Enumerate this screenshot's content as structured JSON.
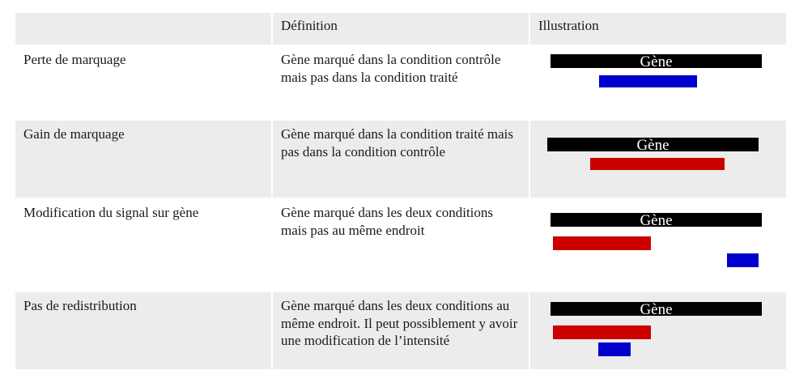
{
  "table": {
    "headers": [
      "",
      "Définition",
      "Illustration"
    ],
    "rows": [
      {
        "label": "Perte de marquage",
        "definition": "Gène marqué dans la condition contrôle mais pas dans la condition traité",
        "gene_label": "Gène",
        "bars": [
          "blue"
        ]
      },
      {
        "label": "Gain de marquage",
        "definition": "Gène marqué dans la condition traité mais pas dans la condition contrôle",
        "gene_label": "Gène",
        "bars": [
          "red"
        ]
      },
      {
        "label": "Modification du signal sur gène",
        "definition": "Gène marqué dans les deux conditions mais pas au même endroit",
        "gene_label": "Gène",
        "bars": [
          "red",
          "blue"
        ]
      },
      {
        "label": "Pas de redistribution",
        "definition": "Gène marqué dans les deux conditions  au même endroit. Il peut possiblement y avoir une modification de l’intensité",
        "gene_label": "Gène",
        "bars": [
          "red",
          "blue"
        ]
      }
    ]
  },
  "colors": {
    "gene": "#000000",
    "red": "#cc0000",
    "blue": "#0000cc",
    "shade": "#ececec"
  }
}
